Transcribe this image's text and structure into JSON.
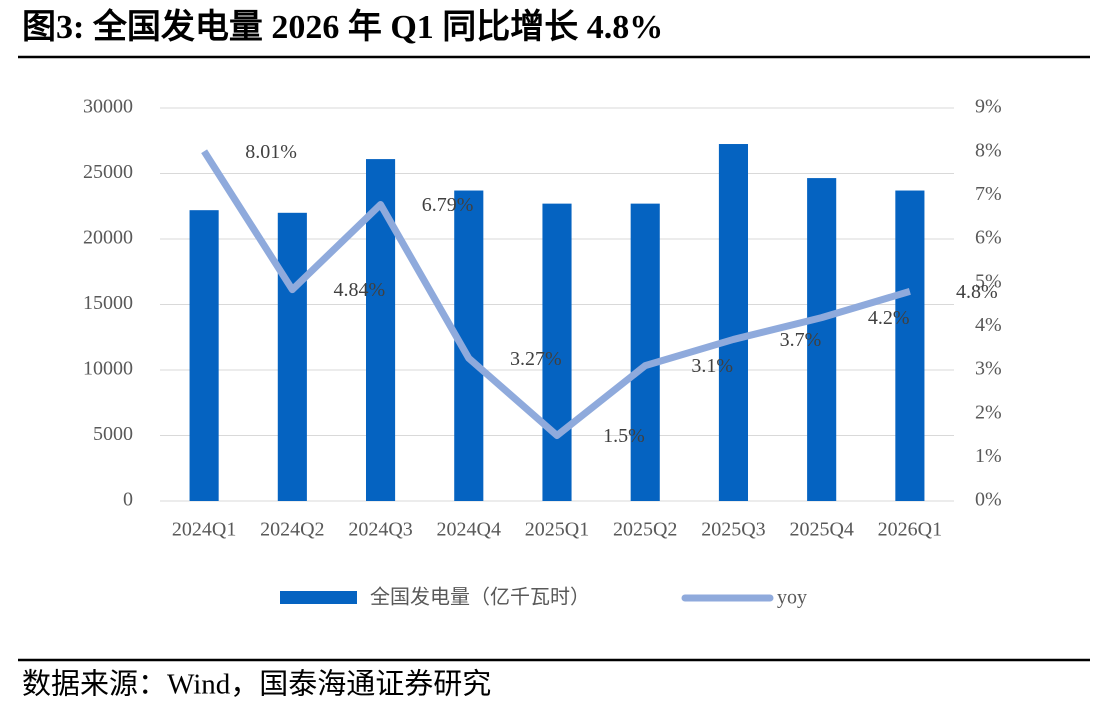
{
  "chart_data": {
    "type": "bar-line",
    "title": "图3:  全国发电量 2026 年 Q1 同比增长 4.8%",
    "source": "数据来源：Wind，国泰海通证券研究",
    "categories": [
      "2024Q1",
      "2024Q2",
      "2024Q3",
      "2024Q4",
      "2025Q1",
      "2025Q2",
      "2025Q3",
      "2025Q4",
      "2026Q1"
    ],
    "series": [
      {
        "name": "全国发电量（亿千瓦时）",
        "type": "bar",
        "color": "#0563c1",
        "values": [
          22200,
          22000,
          26100,
          23700,
          22700,
          22700,
          27250,
          24650,
          23700
        ]
      },
      {
        "name": "yoy",
        "type": "line",
        "axis": "y2",
        "color": "#8faadc",
        "values": [
          8.01,
          4.84,
          6.79,
          3.27,
          1.5,
          3.1,
          3.7,
          4.2,
          4.8
        ],
        "value_labels": [
          "8.01%",
          "4.84%",
          "6.79%",
          "3.27%",
          "1.5%",
          "3.1%",
          "3.7%",
          "4.2%",
          "4.8%"
        ]
      }
    ],
    "ylim": [
      0,
      30000
    ],
    "yticks": [
      0,
      5000,
      10000,
      15000,
      20000,
      25000,
      30000
    ],
    "y2lim": [
      0,
      9
    ],
    "y2ticks": [
      {
        "value": 0,
        "label": "0%"
      },
      {
        "value": 1,
        "label": "1%"
      },
      {
        "value": 2,
        "label": "2%"
      },
      {
        "value": 3,
        "label": "3%"
      },
      {
        "value": 4,
        "label": "4%"
      },
      {
        "value": 5,
        "label": "5%"
      },
      {
        "value": 6,
        "label": "6%"
      },
      {
        "value": 7,
        "label": "7%"
      },
      {
        "value": 8,
        "label": "8%"
      },
      {
        "value": 9,
        "label": "9%"
      }
    ],
    "grid": true
  }
}
